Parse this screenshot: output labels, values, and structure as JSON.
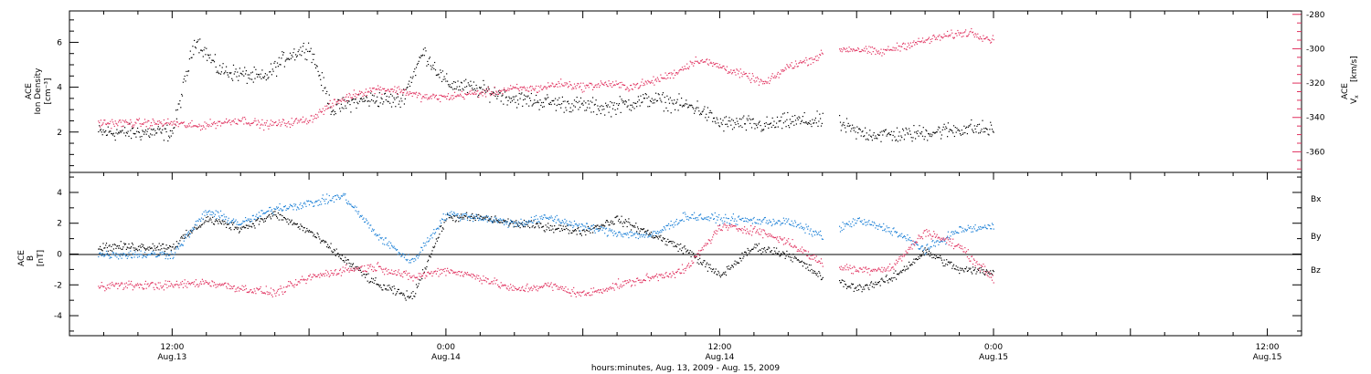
{
  "colors": {
    "black": "#000000",
    "pink": "#e0305e",
    "blue": "#1a7fd6"
  },
  "chart_data": [
    {
      "type": "scatter",
      "panel": "top",
      "ylabel_left": [
        "ACE",
        "Ion Density",
        "[cm⁻³]"
      ],
      "ylabel_right": [
        "ACE",
        "V",
        "x",
        "[km/s]"
      ],
      "ylim_left": [
        0.2,
        7.4
      ],
      "ylim_right": [
        -372,
        -278
      ],
      "y_ticks_left": [
        2,
        4,
        6
      ],
      "y_tick_labels_left": [
        "2",
        "4",
        "6"
      ],
      "y_ticks_right": [
        -280,
        -300,
        -320,
        -340,
        -360
      ],
      "y_tick_labels_right": [
        "-280",
        "-300",
        "-320",
        "-340",
        "-360"
      ],
      "series": [
        {
          "axis": "left",
          "color": "#000000",
          "x": [
            0,
            2,
            4,
            6,
            8,
            10,
            12,
            14,
            16,
            18,
            20,
            22,
            24,
            26,
            28,
            30,
            32,
            34,
            36,
            38,
            40,
            42,
            44,
            46,
            48,
            50,
            52,
            54,
            56,
            58,
            60,
            62,
            64,
            66,
            68,
            70,
            72
          ],
          "y": [
            2.0,
            6.2,
            4.8,
            4.6,
            4.4,
            5.4,
            5.8,
            3.0,
            3.4,
            3.5,
            3.4,
            5.6,
            4.2,
            4.0,
            3.8,
            3.5,
            3.4,
            3.3,
            3.2,
            3.1,
            3.3,
            3.5,
            3.3,
            3.1,
            2.4,
            2.4,
            2.3,
            2.5,
            2.5,
            2.5,
            2.0,
            1.9,
            1.9,
            2.0,
            2.1,
            2.2,
            2.1
          ]
        },
        {
          "axis": "right",
          "color": "#e0305e",
          "x": [
            0,
            2,
            4,
            6,
            8,
            10,
            12,
            14,
            16,
            18,
            20,
            22,
            24,
            26,
            28,
            30,
            32,
            34,
            36,
            38,
            40,
            42,
            44,
            46,
            48,
            50,
            52,
            54,
            56,
            58,
            60,
            62,
            64,
            66,
            68,
            70,
            72
          ],
          "y": [
            -343,
            -345,
            -343,
            -341,
            -344,
            -343,
            -341,
            -332,
            -326,
            -323,
            -324,
            -328,
            -328,
            -326,
            -325,
            -323,
            -323,
            -320,
            -322,
            -320,
            -322,
            -319,
            -314,
            -306,
            -310,
            -315,
            -320,
            -310,
            -306,
            -300,
            -300,
            -302,
            -298,
            -295,
            -292,
            -290,
            -295
          ]
        }
      ]
    },
    {
      "type": "scatter",
      "panel": "bottom",
      "ylabel": [
        "ACE",
        "B",
        "[nT]"
      ],
      "ylim": [
        -5.3,
        5.3
      ],
      "y_ticks": [
        -4,
        -2,
        0,
        2,
        4
      ],
      "y_tick_labels": [
        "-4",
        "-2",
        "0",
        "2",
        "4"
      ],
      "legend": [
        "Bx",
        "By",
        "Bz"
      ],
      "legend_placement": "right",
      "series": [
        {
          "color": "#000000",
          "x": [
            0,
            3,
            6,
            9,
            12,
            15,
            18,
            21,
            24,
            27,
            30,
            33,
            36,
            39,
            42,
            45,
            48,
            51,
            54,
            57,
            60,
            63,
            66,
            69,
            72
          ],
          "y": [
            0.5,
            2.3,
            1.7,
            2.6,
            1.5,
            -0.3,
            -2.0,
            -2.8,
            2.4,
            2.4,
            2.0,
            1.8,
            1.5,
            2.3,
            1.3,
            0.3,
            -1.4,
            0.5,
            0.0,
            -1.5,
            -2.2,
            -1.6,
            0.2,
            -1.0,
            -1.1
          ]
        },
        {
          "color": "#1a7fd6",
          "x": [
            0,
            3,
            6,
            9,
            12,
            15,
            18,
            21,
            24,
            27,
            30,
            33,
            36,
            39,
            42,
            45,
            48,
            51,
            54,
            57,
            60,
            63,
            66,
            69,
            72
          ],
          "y": [
            0.0,
            2.8,
            2.0,
            3.0,
            3.3,
            3.8,
            1.2,
            -0.5,
            2.6,
            2.4,
            2.0,
            2.4,
            1.8,
            1.4,
            1.2,
            2.5,
            2.3,
            2.2,
            2.1,
            1.2,
            2.2,
            1.6,
            0.3,
            1.6,
            1.8
          ]
        },
        {
          "color": "#e0305e",
          "x": [
            0,
            3,
            6,
            9,
            12,
            15,
            18,
            21,
            24,
            27,
            30,
            33,
            36,
            39,
            42,
            45,
            48,
            51,
            54,
            57,
            60,
            63,
            66,
            69,
            72
          ],
          "y": [
            -2.0,
            -1.8,
            -2.2,
            -2.5,
            -1.5,
            -1.0,
            -0.8,
            -1.5,
            -1.0,
            -1.5,
            -2.3,
            -2.0,
            -2.6,
            -2.0,
            -1.5,
            -1.0,
            1.8,
            1.6,
            0.8,
            -0.6,
            -1.0,
            -0.9,
            1.5,
            0.5,
            -1.6
          ]
        }
      ]
    }
  ],
  "x_axis": {
    "start": -9,
    "end": 99,
    "xlabel": "hours:minutes, Aug. 13, 2009 - Aug. 15, 2009",
    "ticks": [
      {
        "x": 0,
        "time": "12:00",
        "date": "Aug.13"
      },
      {
        "x": 24,
        "time": "0:00",
        "date": "Aug.14"
      },
      {
        "x": 48,
        "time": "12:00",
        "date": "Aug.14"
      },
      {
        "x": 72,
        "time": "0:00",
        "date": "Aug.15"
      },
      {
        "x": 96,
        "time": "12:00",
        "date": "Aug.15"
      }
    ]
  }
}
